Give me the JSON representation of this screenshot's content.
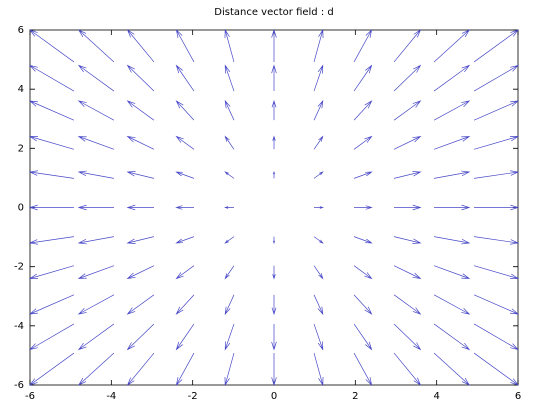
{
  "chart_data": {
    "type": "quiver",
    "title": "Distance vector field : d",
    "color": "#4848c8",
    "x": [
      -6,
      -4.8,
      -3.6,
      -2.4,
      -1.2,
      0,
      1.2,
      2.4,
      3.6,
      4.8,
      6
    ],
    "y": [
      6,
      4.8,
      3.6,
      2.4,
      1.2,
      0,
      -1.2,
      -2.4,
      -3.6,
      -4.8,
      -6
    ],
    "u": [
      [
        -6,
        -4.8,
        -3.6,
        -2.4,
        -1.2,
        0,
        1.2,
        2.4,
        3.6,
        4.8,
        6
      ],
      [
        -6,
        -4.8,
        -3.6,
        -2.4,
        -1.2,
        0,
        1.2,
        2.4,
        3.6,
        4.8,
        6
      ],
      [
        -6,
        -4.8,
        -3.6,
        -2.4,
        -1.2,
        0,
        1.2,
        2.4,
        3.6,
        4.8,
        6
      ],
      [
        -6,
        -4.8,
        -3.6,
        -2.4,
        -1.2,
        0,
        1.2,
        2.4,
        3.6,
        4.8,
        6
      ],
      [
        -6,
        -4.8,
        -3.6,
        -2.4,
        -1.2,
        0,
        1.2,
        2.4,
        3.6,
        4.8,
        6
      ],
      [
        -6,
        -4.8,
        -3.6,
        -2.4,
        -1.2,
        0,
        1.2,
        2.4,
        3.6,
        4.8,
        6
      ],
      [
        -6,
        -4.8,
        -3.6,
        -2.4,
        -1.2,
        0,
        1.2,
        2.4,
        3.6,
        4.8,
        6
      ],
      [
        -6,
        -4.8,
        -3.6,
        -2.4,
        -1.2,
        0,
        1.2,
        2.4,
        3.6,
        4.8,
        6
      ],
      [
        -6,
        -4.8,
        -3.6,
        -2.4,
        -1.2,
        0,
        1.2,
        2.4,
        3.6,
        4.8,
        6
      ],
      [
        -6,
        -4.8,
        -3.6,
        -2.4,
        -1.2,
        0,
        1.2,
        2.4,
        3.6,
        4.8,
        6
      ],
      [
        -6,
        -4.8,
        -3.6,
        -2.4,
        -1.2,
        0,
        1.2,
        2.4,
        3.6,
        4.8,
        6
      ]
    ],
    "v": [
      [
        6,
        6,
        6,
        6,
        6,
        6,
        6,
        6,
        6,
        6,
        6
      ],
      [
        4.8,
        4.8,
        4.8,
        4.8,
        4.8,
        4.8,
        4.8,
        4.8,
        4.8,
        4.8,
        4.8
      ],
      [
        3.6,
        3.6,
        3.6,
        3.6,
        3.6,
        3.6,
        3.6,
        3.6,
        3.6,
        3.6,
        3.6
      ],
      [
        2.4,
        2.4,
        2.4,
        2.4,
        2.4,
        2.4,
        2.4,
        2.4,
        2.4,
        2.4,
        2.4
      ],
      [
        1.2,
        1.2,
        1.2,
        1.2,
        1.2,
        1.2,
        1.2,
        1.2,
        1.2,
        1.2,
        1.2
      ],
      [
        0,
        0,
        0,
        0,
        0,
        0,
        0,
        0,
        0,
        0,
        0
      ],
      [
        -1.2,
        -1.2,
        -1.2,
        -1.2,
        -1.2,
        -1.2,
        -1.2,
        -1.2,
        -1.2,
        -1.2,
        -1.2
      ],
      [
        -2.4,
        -2.4,
        -2.4,
        -2.4,
        -2.4,
        -2.4,
        -2.4,
        -2.4,
        -2.4,
        -2.4,
        -2.4
      ],
      [
        -3.6,
        -3.6,
        -3.6,
        -3.6,
        -3.6,
        -3.6,
        -3.6,
        -3.6,
        -3.6,
        -3.6,
        -3.6
      ],
      [
        -4.8,
        -4.8,
        -4.8,
        -4.8,
        -4.8,
        -4.8,
        -4.8,
        -4.8,
        -4.8,
        -4.8,
        -4.8
      ],
      [
        -6,
        -6,
        -6,
        -6,
        -6,
        -6,
        -6,
        -6,
        -6,
        -6,
        -6
      ]
    ],
    "xlim": [
      -6,
      6
    ],
    "ylim": [
      -6,
      6
    ],
    "xticks": [
      -6,
      -4,
      -2,
      0,
      2,
      4,
      6
    ],
    "yticks": [
      -6,
      -4,
      -2,
      0,
      2,
      4,
      6
    ]
  }
}
